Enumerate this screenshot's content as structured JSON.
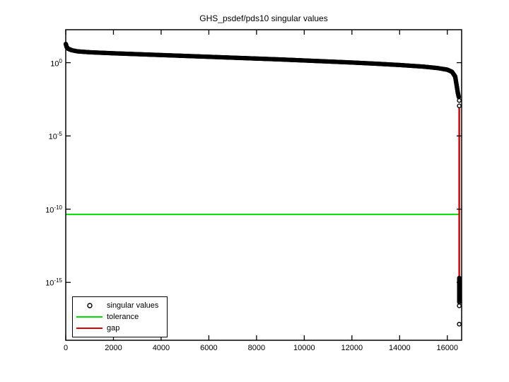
{
  "title": "GHS_psdef/pds10 singular values",
  "colors": {
    "foreground": "#000000",
    "background": "#ffffff",
    "markers": "#000000",
    "tolerance": "#00dd00",
    "gap": "#dd0000"
  },
  "legend": {
    "items": [
      {
        "label": "singular values",
        "swatch": "circle-marker",
        "color": "#000000"
      },
      {
        "label": "tolerance",
        "swatch": "line",
        "color": "#00dd00"
      },
      {
        "label": "gap",
        "swatch": "line",
        "color": "#dd0000"
      }
    ]
  },
  "chart_data": {
    "type": "scatter",
    "title": "GHS_psdef/pds10 singular values",
    "xlabel": "",
    "ylabel": "",
    "grid": false,
    "legend_position": "bottom-left",
    "x_axis": {
      "lim": [
        0,
        16600
      ],
      "ticks": [
        0,
        2000,
        4000,
        6000,
        8000,
        10000,
        12000,
        14000,
        16000
      ]
    },
    "y_axis": {
      "scale": "log10",
      "lim_log10": [
        -18.95,
        2.25
      ],
      "tick_exponents": [
        0,
        -5,
        -10,
        -15
      ]
    },
    "n_singular_values": 16558,
    "numerical_rank": 16500,
    "tolerance": 4.4e-11,
    "series": [
      {
        "name": "singular values",
        "style": "markers-o",
        "color": "#000000",
        "anchor_points_x_log10y": [
          [
            1,
            1.28
          ],
          [
            40,
            1.06
          ],
          [
            100,
            0.95
          ],
          [
            250,
            0.85
          ],
          [
            500,
            0.77
          ],
          [
            1000,
            0.71
          ],
          [
            2000,
            0.64
          ],
          [
            3000,
            0.58
          ],
          [
            4000,
            0.52
          ],
          [
            5000,
            0.46
          ],
          [
            6000,
            0.4
          ],
          [
            7000,
            0.34
          ],
          [
            8000,
            0.28
          ],
          [
            9000,
            0.22
          ],
          [
            10000,
            0.15
          ],
          [
            11000,
            0.08
          ],
          [
            12000,
            0.01
          ],
          [
            13000,
            -0.07
          ],
          [
            14000,
            -0.16
          ],
          [
            15000,
            -0.27
          ],
          [
            15600,
            -0.37
          ],
          [
            16000,
            -0.48
          ],
          [
            16200,
            -0.63
          ],
          [
            16330,
            -0.95
          ],
          [
            16390,
            -1.55
          ],
          [
            16440,
            -2.05
          ],
          [
            16480,
            -2.35
          ]
        ],
        "tail_points_x_log10y": [
          [
            16500,
            -2.58
          ],
          [
            16500,
            -2.95
          ]
        ],
        "below_gap_dense_span_log10": {
          "x": 16500,
          "from": -14.7,
          "to": -16.35,
          "count": 26
        },
        "below_gap_outliers_x_log10y": [
          [
            16500,
            -16.6
          ],
          [
            16500,
            -17.85
          ]
        ]
      },
      {
        "name": "tolerance",
        "style": "line",
        "color": "#00dd00",
        "y_value": 4.4e-11,
        "y_log10": -10.36,
        "x_span": [
          0,
          16500
        ]
      },
      {
        "name": "gap",
        "style": "line",
        "color": "#dd0000",
        "x": 16500,
        "y_span_log10": [
          -3.1,
          -14.7
        ]
      }
    ]
  }
}
